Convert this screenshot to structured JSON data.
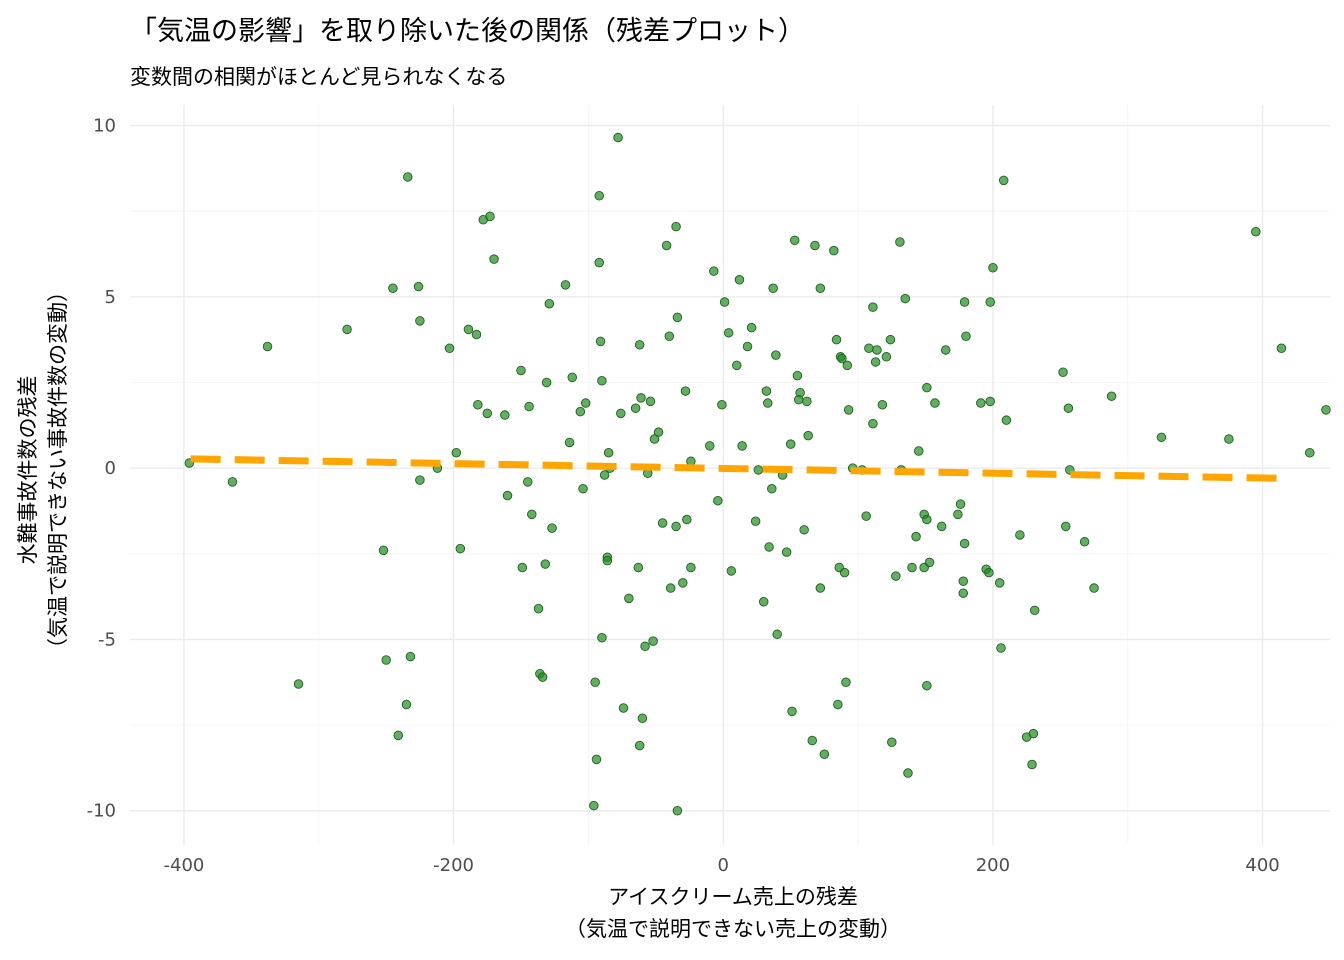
{
  "chart_data": {
    "type": "scatter",
    "title": "「気温の影響」を取り除いた後の関係（残差プロット）",
    "subtitle": "変数間の相関がほとんど見られなくなる",
    "xlabel": [
      "アイスクリーム売上の残差",
      "（気温で説明できない売上の変動）"
    ],
    "ylabel": [
      "水難事故件数の残差",
      "（気温で説明できない事故件数の変動）"
    ],
    "xlim": [
      -440,
      450
    ],
    "ylim": [
      -11,
      10.6
    ],
    "x_ticks": [
      -400,
      -200,
      0,
      200,
      400
    ],
    "x_tick_labels": [
      "-400",
      "-200",
      "0",
      "200",
      "400"
    ],
    "y_ticks": [
      -10,
      -5,
      0,
      5,
      10
    ],
    "y_tick_labels": [
      "-10",
      "-5",
      "0",
      "5",
      "10"
    ],
    "grid": true,
    "point_color": "#228B22",
    "line_color": "#FFA500",
    "fit_line": {
      "x": [
        -395,
        417
      ],
      "y": [
        0.27,
        -0.3
      ],
      "style": "dashed"
    },
    "points": [
      [
        -396,
        0.15
      ],
      [
        -364,
        -0.4
      ],
      [
        -338,
        3.55
      ],
      [
        -315,
        -6.3
      ],
      [
        -279,
        4.05
      ],
      [
        -252,
        -2.4
      ],
      [
        -250,
        -5.6
      ],
      [
        -245,
        5.25
      ],
      [
        -241,
        -7.8
      ],
      [
        -235,
        -6.9
      ],
      [
        -234,
        8.5
      ],
      [
        -232,
        -5.5
      ],
      [
        -226,
        5.3
      ],
      [
        -225,
        -0.35
      ],
      [
        -225,
        4.3
      ],
      [
        -212,
        0.0
      ],
      [
        -203,
        3.5
      ],
      [
        -198,
        0.45
      ],
      [
        -195,
        -2.35
      ],
      [
        -189,
        4.05
      ],
      [
        -183,
        3.9
      ],
      [
        -182,
        1.85
      ],
      [
        -178,
        7.25
      ],
      [
        -175,
        1.6
      ],
      [
        -173,
        7.35
      ],
      [
        -170,
        6.1
      ],
      [
        -162,
        1.55
      ],
      [
        -160,
        -0.8
      ],
      [
        -150,
        2.85
      ],
      [
        -149,
        -2.9
      ],
      [
        -145,
        -0.4
      ],
      [
        -144,
        1.8
      ],
      [
        -142,
        -1.35
      ],
      [
        -137,
        -4.1
      ],
      [
        -136,
        -6.0
      ],
      [
        -134,
        -6.1
      ],
      [
        -132,
        -2.8
      ],
      [
        -131,
        2.5
      ],
      [
        -129,
        4.8
      ],
      [
        -127,
        -1.75
      ],
      [
        -117,
        5.35
      ],
      [
        -114,
        0.75
      ],
      [
        -112,
        2.65
      ],
      [
        -106,
        1.65
      ],
      [
        -104,
        -0.6
      ],
      [
        -102,
        1.9
      ],
      [
        -96,
        -9.85
      ],
      [
        -95,
        -6.25
      ],
      [
        -94,
        -8.5
      ],
      [
        -92,
        7.95
      ],
      [
        -92,
        6.0
      ],
      [
        -91,
        3.7
      ],
      [
        -90,
        2.55
      ],
      [
        -90,
        -4.95
      ],
      [
        -88,
        -0.2
      ],
      [
        -86,
        -2.6
      ],
      [
        -86,
        -2.7
      ],
      [
        -85,
        0.45
      ],
      [
        -84,
        0.0
      ],
      [
        -78,
        9.65
      ],
      [
        -76,
        1.6
      ],
      [
        -74,
        -7.0
      ],
      [
        -70,
        -3.8
      ],
      [
        -65,
        1.75
      ],
      [
        -63,
        -2.9
      ],
      [
        -62,
        -8.1
      ],
      [
        -62,
        3.6
      ],
      [
        -61,
        2.05
      ],
      [
        -60,
        -7.3
      ],
      [
        -58,
        -5.2
      ],
      [
        -56,
        -0.15
      ],
      [
        -54,
        1.95
      ],
      [
        -52,
        -5.05
      ],
      [
        -51,
        0.85
      ],
      [
        -48,
        1.05
      ],
      [
        -45,
        -1.6
      ],
      [
        -42,
        6.5
      ],
      [
        -40,
        3.85
      ],
      [
        -39,
        -3.5
      ],
      [
        -35,
        7.05
      ],
      [
        -35,
        -1.7
      ],
      [
        -34,
        4.4
      ],
      [
        -34,
        -10.0
      ],
      [
        -30,
        -3.35
      ],
      [
        -28,
        2.25
      ],
      [
        -27,
        -1.5
      ],
      [
        -24,
        -2.9
      ],
      [
        -24,
        0.2
      ],
      [
        -10,
        0.65
      ],
      [
        -7,
        5.75
      ],
      [
        -4,
        -0.95
      ],
      [
        -1,
        1.85
      ],
      [
        1,
        4.85
      ],
      [
        4,
        3.95
      ],
      [
        6,
        -3.0
      ],
      [
        10,
        3.0
      ],
      [
        12,
        5.5
      ],
      [
        14,
        0.65
      ],
      [
        18,
        3.55
      ],
      [
        21,
        4.1
      ],
      [
        24,
        -1.55
      ],
      [
        26,
        -0.05
      ],
      [
        30,
        -3.9
      ],
      [
        32,
        2.25
      ],
      [
        33,
        1.9
      ],
      [
        34,
        -2.3
      ],
      [
        36,
        -0.6
      ],
      [
        37,
        5.25
      ],
      [
        39,
        3.3
      ],
      [
        40,
        -4.85
      ],
      [
        44,
        -0.2
      ],
      [
        47,
        -2.45
      ],
      [
        50,
        0.7
      ],
      [
        51,
        -7.1
      ],
      [
        53,
        6.65
      ],
      [
        55,
        2.7
      ],
      [
        56,
        2.0
      ],
      [
        57,
        2.2
      ],
      [
        60,
        -1.8
      ],
      [
        62,
        1.95
      ],
      [
        63,
        0.95
      ],
      [
        66,
        -7.95
      ],
      [
        68,
        6.5
      ],
      [
        72,
        5.25
      ],
      [
        72,
        -3.5
      ],
      [
        75,
        -8.35
      ],
      [
        82,
        6.35
      ],
      [
        84,
        3.75
      ],
      [
        85,
        -6.9
      ],
      [
        86,
        -2.9
      ],
      [
        87,
        3.25
      ],
      [
        88,
        3.2
      ],
      [
        90,
        -3.05
      ],
      [
        91,
        -6.25
      ],
      [
        92,
        3.0
      ],
      [
        93,
        1.7
      ],
      [
        96,
        0.0
      ],
      [
        103,
        -0.05
      ],
      [
        106,
        -1.4
      ],
      [
        108,
        3.5
      ],
      [
        111,
        4.7
      ],
      [
        111,
        1.3
      ],
      [
        113,
        3.1
      ],
      [
        114,
        3.45
      ],
      [
        118,
        1.85
      ],
      [
        121,
        3.25
      ],
      [
        124,
        3.75
      ],
      [
        125,
        -8.0
      ],
      [
        128,
        -3.15
      ],
      [
        131,
        6.6
      ],
      [
        132,
        -0.05
      ],
      [
        135,
        4.95
      ],
      [
        137,
        -8.9
      ],
      [
        140,
        -2.9
      ],
      [
        143,
        -2.0
      ],
      [
        145,
        0.5
      ],
      [
        149,
        -2.9
      ],
      [
        149,
        -1.35
      ],
      [
        151,
        2.35
      ],
      [
        151,
        -1.5
      ],
      [
        151,
        -6.35
      ],
      [
        153,
        -2.75
      ],
      [
        157,
        1.9
      ],
      [
        162,
        -1.7
      ],
      [
        165,
        3.45
      ],
      [
        174,
        -1.35
      ],
      [
        176,
        -1.05
      ],
      [
        178,
        -3.3
      ],
      [
        178,
        -3.65
      ],
      [
        179,
        4.85
      ],
      [
        179,
        -2.2
      ],
      [
        180,
        3.85
      ],
      [
        191,
        1.9
      ],
      [
        195,
        -2.95
      ],
      [
        197,
        -3.05
      ],
      [
        198,
        4.85
      ],
      [
        198,
        1.95
      ],
      [
        200,
        5.85
      ],
      [
        205,
        -3.35
      ],
      [
        206,
        -5.25
      ],
      [
        208,
        8.4
      ],
      [
        210,
        1.4
      ],
      [
        220,
        -1.95
      ],
      [
        225,
        -7.85
      ],
      [
        229,
        -8.65
      ],
      [
        230,
        -7.75
      ],
      [
        231,
        -4.15
      ],
      [
        252,
        2.8
      ],
      [
        254,
        -1.7
      ],
      [
        256,
        1.75
      ],
      [
        257,
        -0.05
      ],
      [
        268,
        -2.15
      ],
      [
        275,
        -3.5
      ],
      [
        288,
        2.1
      ],
      [
        325,
        0.9
      ],
      [
        375,
        0.85
      ],
      [
        395,
        6.9
      ],
      [
        414,
        3.5
      ],
      [
        435,
        0.45
      ],
      [
        447,
        1.7
      ]
    ]
  }
}
